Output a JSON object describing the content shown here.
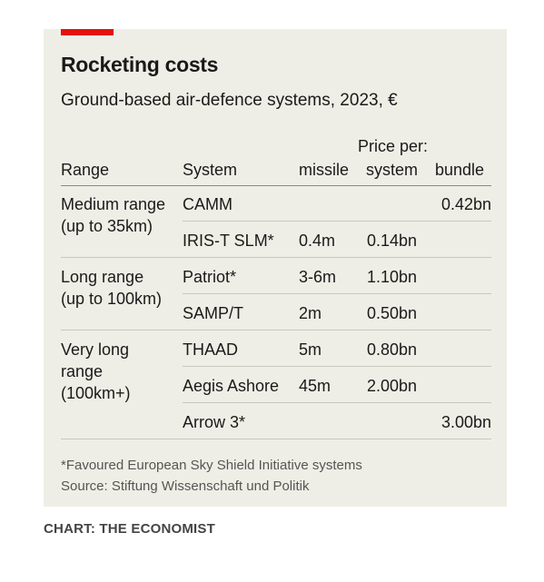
{
  "title": "Rocketing costs",
  "subtitle": "Ground-based air-defence systems, 2023, €",
  "credit": "CHART: THE ECONOMIST",
  "chart_data": {
    "type": "table",
    "title": "Rocketing costs",
    "subtitle": "Ground-based air-defence systems, 2023, €",
    "group_header": "Price per:",
    "columns": [
      "Range",
      "System",
      "missile",
      "system",
      "bundle"
    ],
    "rows": [
      {
        "range": "Medium range\n(up to 35km)",
        "system": "CAMM",
        "missile": "",
        "system_price": "",
        "bundle": "0.42bn"
      },
      {
        "range": "",
        "system": "IRIS-T SLM*",
        "missile": "0.4m",
        "system_price": "0.14bn",
        "bundle": ""
      },
      {
        "range": "Long range\n(up to 100km)",
        "system": "Patriot*",
        "missile": "3-6m",
        "system_price": "1.10bn",
        "bundle": ""
      },
      {
        "range": "",
        "system": "SAMP/T",
        "missile": "2m",
        "system_price": "0.50bn",
        "bundle": ""
      },
      {
        "range": "Very long\nrange\n(100km+)",
        "system": "THAAD",
        "missile": "5m",
        "system_price": "0.80bn",
        "bundle": ""
      },
      {
        "range": "",
        "system": "Aegis Ashore",
        "missile": "45m",
        "system_price": "2.00bn",
        "bundle": ""
      },
      {
        "range": "",
        "system": "Arrow 3*",
        "missile": "",
        "system_price": "",
        "bundle": "3.00bn"
      }
    ],
    "footnote": "*Favoured European Sky Shield Initiative systems",
    "source": "Source: Stiftung Wissenschaft und Politik"
  },
  "colors": {
    "accent": "#e3120b",
    "panel_background": "#efeee6"
  }
}
